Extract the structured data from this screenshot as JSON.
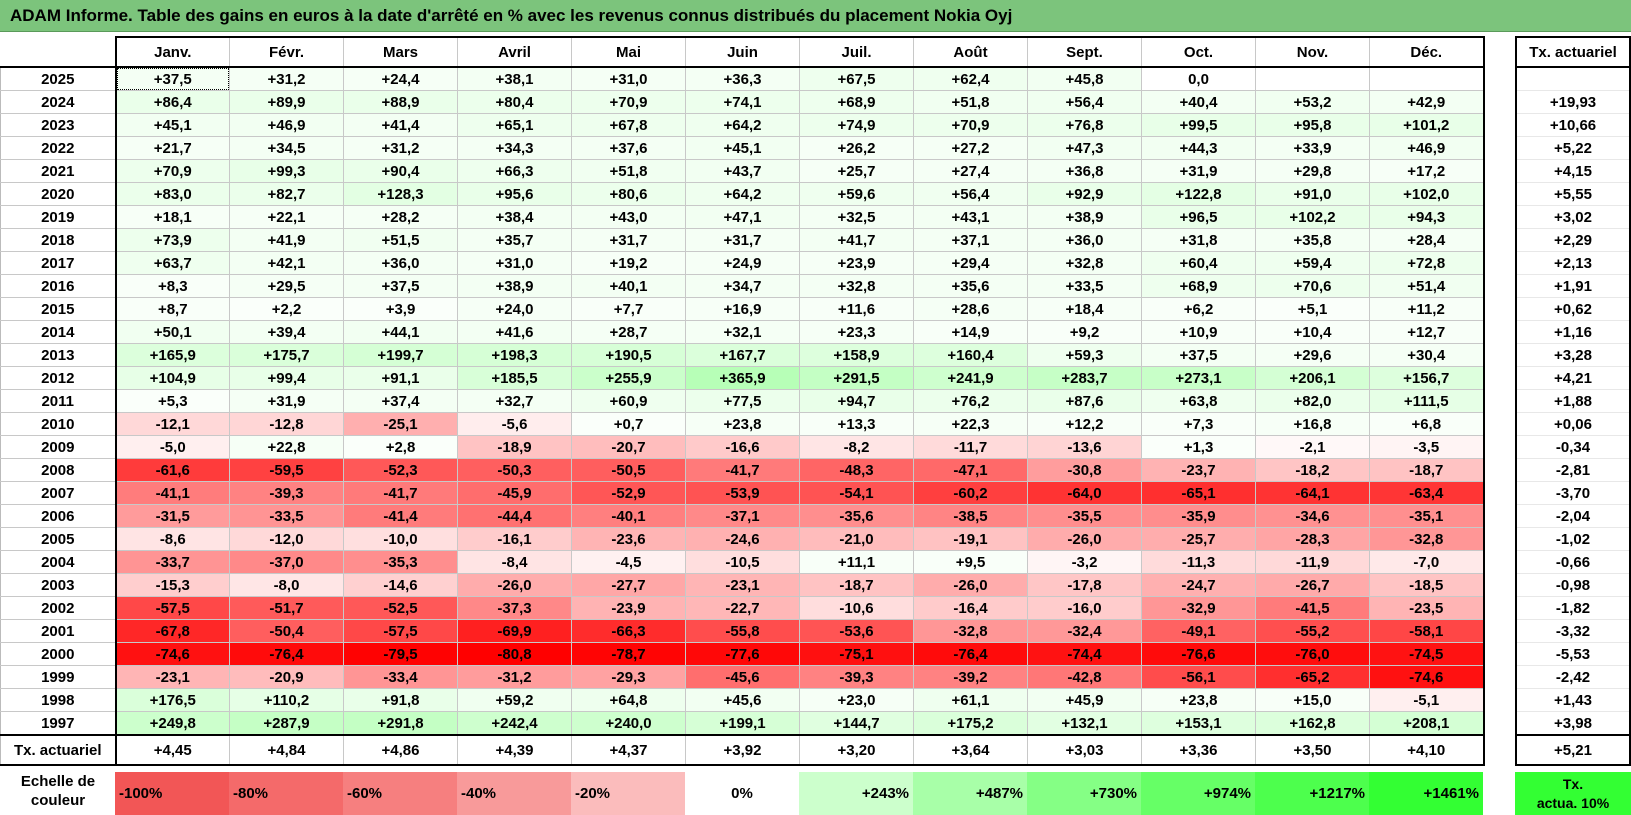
{
  "title": "ADAM Informe. Table des gains en euros à la date d'arrêté en % avec les revenus connus distribués du placement Nokia Oyj",
  "months": [
    "Janv.",
    "Févr.",
    "Mars",
    "Avril",
    "Mai",
    "Juin",
    "Juil.",
    "Août",
    "Sept.",
    "Oct.",
    "Nov.",
    "Déc."
  ],
  "side_header": "Tx. actuariel",
  "rows": [
    {
      "year": "2025",
      "values": [
        "+37,5",
        "+31,2",
        "+24,4",
        "+38,1",
        "+31,0",
        "+36,3",
        "+67,5",
        "+62,4",
        "+45,8",
        "0,0",
        "",
        ""
      ],
      "rate": ""
    },
    {
      "year": "2024",
      "values": [
        "+86,4",
        "+89,9",
        "+88,9",
        "+80,4",
        "+70,9",
        "+74,1",
        "+68,9",
        "+51,8",
        "+56,4",
        "+40,4",
        "+53,2",
        "+42,9"
      ],
      "rate": "+19,93"
    },
    {
      "year": "2023",
      "values": [
        "+45,1",
        "+46,9",
        "+41,4",
        "+65,1",
        "+67,8",
        "+64,2",
        "+74,9",
        "+70,9",
        "+76,8",
        "+99,5",
        "+95,8",
        "+101,2"
      ],
      "rate": "+10,66"
    },
    {
      "year": "2022",
      "values": [
        "+21,7",
        "+34,5",
        "+31,2",
        "+34,3",
        "+37,6",
        "+45,1",
        "+26,2",
        "+27,2",
        "+47,3",
        "+44,3",
        "+33,9",
        "+46,9"
      ],
      "rate": "+5,22"
    },
    {
      "year": "2021",
      "values": [
        "+70,9",
        "+99,3",
        "+90,4",
        "+66,3",
        "+51,8",
        "+43,7",
        "+25,7",
        "+27,4",
        "+36,8",
        "+31,9",
        "+29,8",
        "+17,2"
      ],
      "rate": "+4,15"
    },
    {
      "year": "2020",
      "values": [
        "+83,0",
        "+82,7",
        "+128,3",
        "+95,6",
        "+80,6",
        "+64,2",
        "+59,6",
        "+56,4",
        "+92,9",
        "+122,8",
        "+91,0",
        "+102,0"
      ],
      "rate": "+5,55"
    },
    {
      "year": "2019",
      "values": [
        "+18,1",
        "+22,1",
        "+28,2",
        "+38,4",
        "+43,0",
        "+47,1",
        "+32,5",
        "+43,1",
        "+38,9",
        "+96,5",
        "+102,2",
        "+94,3"
      ],
      "rate": "+3,02"
    },
    {
      "year": "2018",
      "values": [
        "+73,9",
        "+41,9",
        "+51,5",
        "+35,7",
        "+31,7",
        "+31,7",
        "+41,7",
        "+37,1",
        "+36,0",
        "+31,8",
        "+35,8",
        "+28,4"
      ],
      "rate": "+2,29"
    },
    {
      "year": "2017",
      "values": [
        "+63,7",
        "+42,1",
        "+36,0",
        "+31,0",
        "+19,2",
        "+24,9",
        "+23,9",
        "+29,4",
        "+32,8",
        "+60,4",
        "+59,4",
        "+72,8"
      ],
      "rate": "+2,13"
    },
    {
      "year": "2016",
      "values": [
        "+8,3",
        "+29,5",
        "+37,5",
        "+38,9",
        "+40,1",
        "+34,7",
        "+32,8",
        "+35,6",
        "+33,5",
        "+68,9",
        "+70,6",
        "+51,4"
      ],
      "rate": "+1,91"
    },
    {
      "year": "2015",
      "values": [
        "+8,7",
        "+2,2",
        "+3,9",
        "+24,0",
        "+7,7",
        "+16,9",
        "+11,6",
        "+28,6",
        "+18,4",
        "+6,2",
        "+5,1",
        "+11,2"
      ],
      "rate": "+0,62"
    },
    {
      "year": "2014",
      "values": [
        "+50,1",
        "+39,4",
        "+44,1",
        "+41,6",
        "+28,7",
        "+32,1",
        "+23,3",
        "+14,9",
        "+9,2",
        "+10,9",
        "+10,4",
        "+12,7"
      ],
      "rate": "+1,16"
    },
    {
      "year": "2013",
      "values": [
        "+165,9",
        "+175,7",
        "+199,7",
        "+198,3",
        "+190,5",
        "+167,7",
        "+158,9",
        "+160,4",
        "+59,3",
        "+37,5",
        "+29,6",
        "+30,4"
      ],
      "rate": "+3,28"
    },
    {
      "year": "2012",
      "values": [
        "+104,9",
        "+99,4",
        "+91,1",
        "+185,5",
        "+255,9",
        "+365,9",
        "+291,5",
        "+241,9",
        "+283,7",
        "+273,1",
        "+206,1",
        "+156,7"
      ],
      "rate": "+4,21"
    },
    {
      "year": "2011",
      "values": [
        "+5,3",
        "+31,9",
        "+37,4",
        "+32,7",
        "+60,9",
        "+77,5",
        "+94,7",
        "+76,2",
        "+87,6",
        "+63,8",
        "+82,0",
        "+111,5"
      ],
      "rate": "+1,88"
    },
    {
      "year": "2010",
      "values": [
        "-12,1",
        "-12,8",
        "-25,1",
        "-5,6",
        "+0,7",
        "+23,8",
        "+13,3",
        "+22,3",
        "+12,2",
        "+7,3",
        "+16,8",
        "+6,8"
      ],
      "rate": "+0,06"
    },
    {
      "year": "2009",
      "values": [
        "-5,0",
        "+22,8",
        "+2,8",
        "-18,9",
        "-20,7",
        "-16,6",
        "-8,2",
        "-11,7",
        "-13,6",
        "+1,3",
        "-2,1",
        "-3,5"
      ],
      "rate": "-0,34"
    },
    {
      "year": "2008",
      "values": [
        "-61,6",
        "-59,5",
        "-52,3",
        "-50,3",
        "-50,5",
        "-41,7",
        "-48,3",
        "-47,1",
        "-30,8",
        "-23,7",
        "-18,2",
        "-18,7"
      ],
      "rate": "-2,81"
    },
    {
      "year": "2007",
      "values": [
        "-41,1",
        "-39,3",
        "-41,7",
        "-45,9",
        "-52,9",
        "-53,9",
        "-54,1",
        "-60,2",
        "-64,0",
        "-65,1",
        "-64,1",
        "-63,4"
      ],
      "rate": "-3,70"
    },
    {
      "year": "2006",
      "values": [
        "-31,5",
        "-33,5",
        "-41,4",
        "-44,4",
        "-40,1",
        "-37,1",
        "-35,6",
        "-38,5",
        "-35,5",
        "-35,9",
        "-34,6",
        "-35,1"
      ],
      "rate": "-2,04"
    },
    {
      "year": "2005",
      "values": [
        "-8,6",
        "-12,0",
        "-10,0",
        "-16,1",
        "-23,6",
        "-24,6",
        "-21,0",
        "-19,1",
        "-26,0",
        "-25,7",
        "-28,3",
        "-32,8"
      ],
      "rate": "-1,02"
    },
    {
      "year": "2004",
      "values": [
        "-33,7",
        "-37,0",
        "-35,3",
        "-8,4",
        "-4,5",
        "-10,5",
        "+11,1",
        "+9,5",
        "-3,2",
        "-11,3",
        "-11,9",
        "-7,0"
      ],
      "rate": "-0,66"
    },
    {
      "year": "2003",
      "values": [
        "-15,3",
        "-8,0",
        "-14,6",
        "-26,0",
        "-27,7",
        "-23,1",
        "-18,7",
        "-26,0",
        "-17,8",
        "-24,7",
        "-26,7",
        "-18,5"
      ],
      "rate": "-0,98"
    },
    {
      "year": "2002",
      "values": [
        "-57,5",
        "-51,7",
        "-52,5",
        "-37,3",
        "-23,9",
        "-22,7",
        "-10,6",
        "-16,4",
        "-16,0",
        "-32,9",
        "-41,5",
        "-23,5"
      ],
      "rate": "-1,82"
    },
    {
      "year": "2001",
      "values": [
        "-67,8",
        "-50,4",
        "-57,5",
        "-69,9",
        "-66,3",
        "-55,8",
        "-53,6",
        "-32,8",
        "-32,4",
        "-49,1",
        "-55,2",
        "-58,1"
      ],
      "rate": "-3,32"
    },
    {
      "year": "2000",
      "values": [
        "-74,6",
        "-76,4",
        "-79,5",
        "-80,8",
        "-78,7",
        "-77,6",
        "-75,1",
        "-76,4",
        "-74,4",
        "-76,6",
        "-76,0",
        "-74,5"
      ],
      "rate": "-5,53"
    },
    {
      "year": "1999",
      "values": [
        "-23,1",
        "-20,9",
        "-33,4",
        "-31,2",
        "-29,3",
        "-45,6",
        "-39,3",
        "-39,2",
        "-42,8",
        "-56,1",
        "-65,2",
        "-74,6"
      ],
      "rate": "-2,42"
    },
    {
      "year": "1998",
      "values": [
        "+176,5",
        "+110,2",
        "+91,8",
        "+59,2",
        "+64,8",
        "+45,6",
        "+23,0",
        "+61,1",
        "+45,9",
        "+23,8",
        "+15,0",
        "-5,1"
      ],
      "rate": "+1,43"
    },
    {
      "year": "1997",
      "values": [
        "+249,8",
        "+287,9",
        "+291,8",
        "+242,4",
        "+240,0",
        "+199,1",
        "+144,7",
        "+175,2",
        "+132,1",
        "+153,1",
        "+162,8",
        "+208,1"
      ],
      "rate": "+3,98"
    }
  ],
  "footer": {
    "label": "Tx. actuariel",
    "values": [
      "+4,45",
      "+4,84",
      "+4,86",
      "+4,39",
      "+4,37",
      "+3,92",
      "+3,20",
      "+3,64",
      "+3,03",
      "+3,36",
      "+3,50",
      "+4,10"
    ],
    "overall": "+5,21"
  },
  "legend": {
    "label_line1": "Echelle de",
    "label_line2": "couleur",
    "items": [
      {
        "text": "-100%",
        "color": "#f25656",
        "align": "left"
      },
      {
        "text": "-80%",
        "color": "#f46a6a",
        "align": "left"
      },
      {
        "text": "-60%",
        "color": "#f67f7f",
        "align": "left"
      },
      {
        "text": "-40%",
        "color": "#f89a9a",
        "align": "left"
      },
      {
        "text": "-20%",
        "color": "#fbbcbc",
        "align": "left"
      },
      {
        "text": "0%",
        "color": "#ffffff",
        "align": "center"
      },
      {
        "text": "+243%",
        "color": "#ccffcc",
        "align": "right"
      },
      {
        "text": "+487%",
        "color": "#a8ffa8",
        "align": "right"
      },
      {
        "text": "+730%",
        "color": "#85ff85",
        "align": "right"
      },
      {
        "text": "+974%",
        "color": "#66ff66",
        "align": "right"
      },
      {
        "text": "+1217%",
        "color": "#4dff4d",
        "align": "right"
      },
      {
        "text": "+1461%",
        "color": "#33ff33",
        "align": "right"
      }
    ],
    "final_line1": "Tx.",
    "final_line2": "actua. 10%"
  }
}
